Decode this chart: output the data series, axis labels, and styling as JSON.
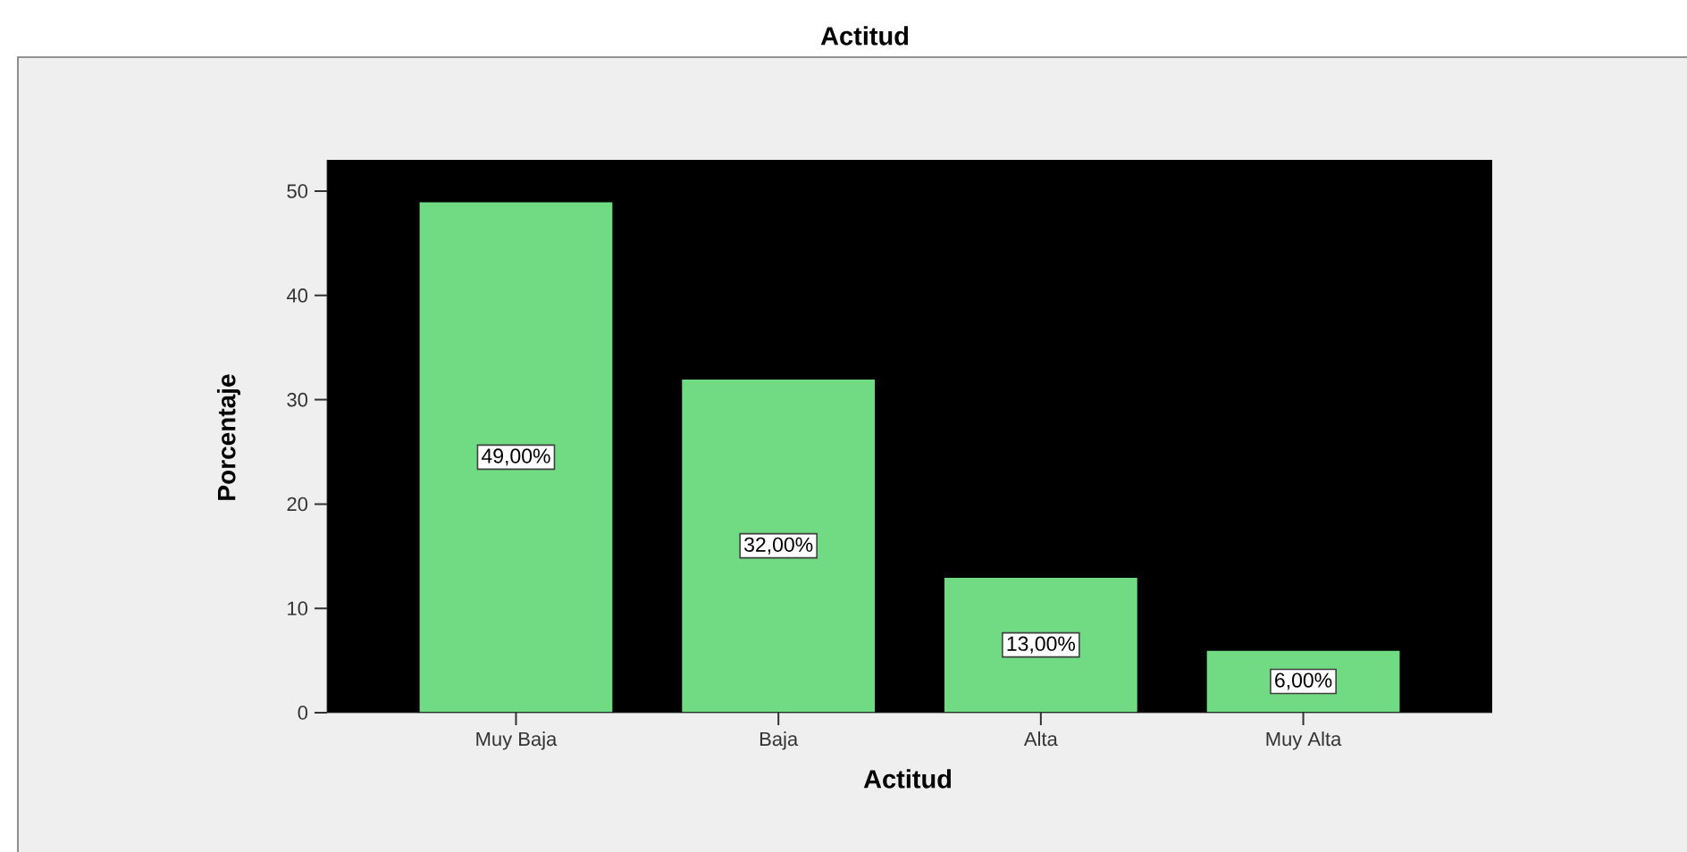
{
  "chart_data": {
    "type": "bar",
    "title": "Actitud",
    "xlabel": "Actitud",
    "ylabel": "Porcentaje",
    "categories": [
      "Muy Baja",
      "Baja",
      "Alta",
      "Muy Alta"
    ],
    "values": [
      49,
      32,
      13,
      6
    ],
    "value_labels": [
      "49,00%",
      "32,00%",
      "13,00%",
      "6,00%"
    ],
    "color": "#70db82",
    "ylim": [
      0,
      53
    ],
    "yticks": [
      0,
      10,
      20,
      30,
      40,
      50
    ]
  }
}
